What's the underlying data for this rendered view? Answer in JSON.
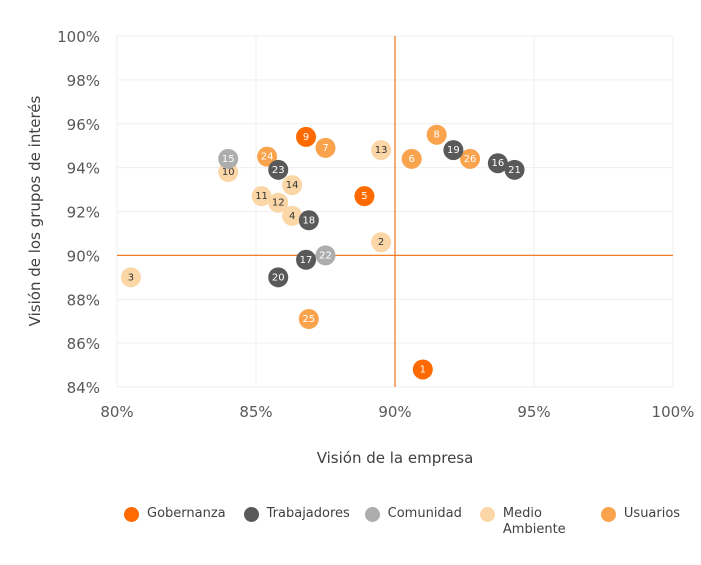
{
  "chart_data": {
    "type": "scatter",
    "title": "",
    "xlabel": "Visión de la empresa",
    "ylabel": "Visión de los grupos de interés",
    "xlim": [
      80,
      100
    ],
    "ylim": [
      84,
      100
    ],
    "x_ticks": [
      "80%",
      "85%",
      "90%",
      "95%",
      "100%"
    ],
    "x_tick_values": [
      80,
      85,
      90,
      95,
      100
    ],
    "y_ticks": [
      "100%",
      "98%",
      "96%",
      "94%",
      "92%",
      "90%",
      "88%",
      "86%",
      "84%"
    ],
    "y_tick_values": [
      100,
      98,
      96,
      94,
      92,
      90,
      88,
      86,
      84
    ],
    "grid": true,
    "reference_lines": {
      "x": 90,
      "y": 90,
      "color": "#F07D2A"
    },
    "legend_position": "bottom",
    "series": [
      {
        "name": "Gobernanza",
        "color": "#FF6A00",
        "label_color": "#ffffff",
        "points": [
          {
            "id": "1",
            "x": 91.0,
            "y": 84.8
          },
          {
            "id": "5",
            "x": 88.9,
            "y": 92.7
          },
          {
            "id": "9",
            "x": 86.8,
            "y": 95.4
          }
        ]
      },
      {
        "name": "Trabajadores",
        "color": "#595959",
        "label_color": "#ffffff",
        "points": [
          {
            "id": "16",
            "x": 93.7,
            "y": 94.2
          },
          {
            "id": "17",
            "x": 86.8,
            "y": 89.8
          },
          {
            "id": "18",
            "x": 86.9,
            "y": 91.6
          },
          {
            "id": "19",
            "x": 92.1,
            "y": 94.8
          },
          {
            "id": "20",
            "x": 85.8,
            "y": 89.0
          },
          {
            "id": "21",
            "x": 94.3,
            "y": 93.9
          },
          {
            "id": "23",
            "x": 85.8,
            "y": 93.9
          }
        ]
      },
      {
        "name": "Comunidad",
        "color": "#ADADAD",
        "label_color": "#ffffff",
        "points": [
          {
            "id": "15",
            "x": 84.0,
            "y": 94.4
          },
          {
            "id": "22",
            "x": 87.5,
            "y": 90.0
          }
        ]
      },
      {
        "name": "Medio Ambiente",
        "color": "#FBD6A6",
        "label_color": "#333333",
        "points": [
          {
            "id": "2",
            "x": 89.5,
            "y": 90.6
          },
          {
            "id": "3",
            "x": 80.5,
            "y": 89.0
          },
          {
            "id": "4",
            "x": 86.3,
            "y": 91.8
          },
          {
            "id": "10",
            "x": 84.0,
            "y": 93.8
          },
          {
            "id": "11",
            "x": 85.2,
            "y": 92.7
          },
          {
            "id": "12",
            "x": 85.8,
            "y": 92.4
          },
          {
            "id": "13",
            "x": 89.5,
            "y": 94.8
          },
          {
            "id": "14",
            "x": 86.3,
            "y": 93.2
          }
        ]
      },
      {
        "name": "Usuarios",
        "color": "#F9A34D",
        "label_color": "#ffffff",
        "points": [
          {
            "id": "6",
            "x": 90.6,
            "y": 94.4
          },
          {
            "id": "7",
            "x": 87.5,
            "y": 94.9
          },
          {
            "id": "8",
            "x": 91.5,
            "y": 95.5
          },
          {
            "id": "24",
            "x": 85.4,
            "y": 94.5
          },
          {
            "id": "25",
            "x": 86.9,
            "y": 87.1
          },
          {
            "id": "26",
            "x": 92.7,
            "y": 94.4
          }
        ]
      }
    ]
  },
  "legend": {
    "items": [
      {
        "label": "Gobernanza",
        "color": "#FF6A00"
      },
      {
        "label": "Trabajadores",
        "color": "#595959"
      },
      {
        "label": "Comunidad",
        "color": "#ADADAD"
      },
      {
        "label": "Medio Ambiente",
        "color": "#FBD6A6"
      },
      {
        "label": "Usuarios",
        "color": "#F9A34D"
      }
    ]
  }
}
